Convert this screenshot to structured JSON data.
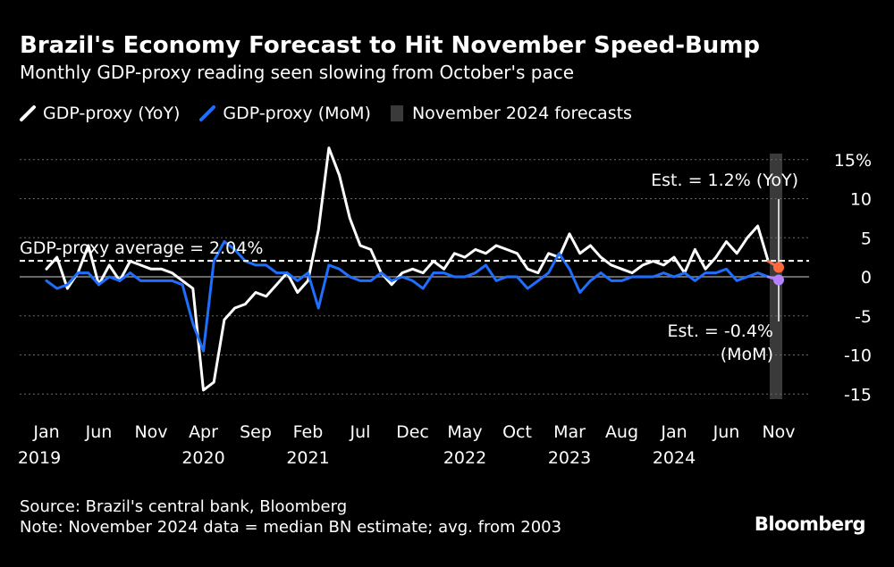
{
  "header": {
    "title": "Brazil's Economy Forecast to Hit November Speed-Bump",
    "subtitle": "Monthly GDP-proxy reading seen slowing from October's pace"
  },
  "legend": [
    {
      "label": "GDP-proxy (YoY)",
      "color": "#ffffff",
      "kind": "line"
    },
    {
      "label": "GDP-proxy (MoM)",
      "color": "#1f6fff",
      "kind": "line"
    },
    {
      "label": "November 2024 forecasts",
      "color": "#3a3a3a",
      "kind": "box"
    }
  ],
  "footer": {
    "source": "Source: Brazil's central bank, Bloomberg",
    "note": "Note: November 2024 data = median BN estimate; avg. from 2003",
    "brand": "Bloomberg"
  },
  "chart_data": {
    "type": "line",
    "title": "Brazil's Economy Forecast to Hit November Speed-Bump",
    "xlabel": "",
    "ylabel": "%",
    "ylim": [
      -15,
      15
    ],
    "yticks": [
      15,
      10,
      5,
      0,
      -5,
      -10,
      -15
    ],
    "ytick_labels": [
      "15%",
      "10",
      "5",
      "0",
      "-5",
      "-10",
      "-15"
    ],
    "x_start": "2019-01",
    "x_tick_labels": [
      {
        "index": 0,
        "month": "Jan",
        "year": "2019"
      },
      {
        "index": 5,
        "month": "Jun",
        "year": ""
      },
      {
        "index": 10,
        "month": "Nov",
        "year": ""
      },
      {
        "index": 15,
        "month": "Apr",
        "year": "2020"
      },
      {
        "index": 20,
        "month": "Sep",
        "year": ""
      },
      {
        "index": 25,
        "month": "Feb",
        "year": "2021"
      },
      {
        "index": 30,
        "month": "Jul",
        "year": ""
      },
      {
        "index": 35,
        "month": "Dec",
        "year": ""
      },
      {
        "index": 40,
        "month": "May",
        "year": "2022"
      },
      {
        "index": 45,
        "month": "Oct",
        "year": ""
      },
      {
        "index": 50,
        "month": "Mar",
        "year": "2023"
      },
      {
        "index": 55,
        "month": "Aug",
        "year": ""
      },
      {
        "index": 60,
        "month": "Jan",
        "year": "2024"
      },
      {
        "index": 65,
        "month": "Jun",
        "year": ""
      },
      {
        "index": 70,
        "month": "Nov",
        "year": ""
      }
    ],
    "series": [
      {
        "name": "GDP-proxy (YoY)",
        "color": "#ffffff",
        "values": [
          1.0,
          2.5,
          -1.5,
          0.5,
          4.0,
          -1.0,
          1.5,
          -0.5,
          2.0,
          1.5,
          1.0,
          1.0,
          0.5,
          -0.5,
          -1.5,
          -14.5,
          -13.5,
          -5.5,
          -4.0,
          -3.5,
          -2.0,
          -2.5,
          -1.0,
          0.5,
          -2.0,
          -0.5,
          6.0,
          16.5,
          13.0,
          7.5,
          4.0,
          3.5,
          0.5,
          -1.0,
          0.5,
          1.0,
          0.5,
          2.0,
          1.0,
          3.0,
          2.5,
          3.5,
          3.0,
          4.0,
          3.5,
          3.0,
          1.0,
          0.5,
          3.0,
          2.5,
          5.5,
          3.0,
          4.0,
          2.5,
          1.5,
          1.0,
          0.5,
          1.5,
          2.0,
          1.5,
          2.5,
          0.5,
          3.5,
          1.0,
          2.5,
          4.5,
          3.0,
          5.0,
          6.5,
          2.0
        ],
        "estimate": {
          "label": "Est. = 1.2% (YoY)",
          "value": 1.2
        }
      },
      {
        "name": "GDP-proxy (MoM)",
        "color": "#1f6fff",
        "values": [
          -0.5,
          -1.5,
          -1.0,
          0.5,
          0.5,
          -1.0,
          0.0,
          -0.5,
          0.5,
          -0.5,
          -0.5,
          -0.5,
          -0.5,
          -1.0,
          -6.0,
          -9.5,
          2.0,
          4.5,
          3.5,
          2.0,
          1.5,
          1.5,
          0.5,
          0.5,
          -0.5,
          0.5,
          -4.0,
          1.5,
          1.0,
          0.0,
          -0.5,
          -0.5,
          0.5,
          -0.5,
          0.0,
          -0.5,
          -1.5,
          0.5,
          0.5,
          0.0,
          0.0,
          0.5,
          1.5,
          -0.5,
          0.0,
          0.0,
          -1.5,
          -0.5,
          0.5,
          3.0,
          1.0,
          -2.0,
          -0.5,
          0.5,
          -0.5,
          -0.5,
          0.0,
          0.0,
          0.0,
          0.5,
          0.0,
          0.5,
          -0.5,
          0.5,
          0.5,
          1.0,
          -0.5,
          0.0,
          0.5,
          0.0
        ],
        "estimate": {
          "label": "Est. = -0.4% (MoM)",
          "value": -0.4
        }
      }
    ],
    "reference_line": {
      "label": "GDP-proxy average = 2.04%",
      "value": 2.04
    },
    "forecast_band": {
      "label": "November 2024 forecasts",
      "index": 70
    }
  }
}
